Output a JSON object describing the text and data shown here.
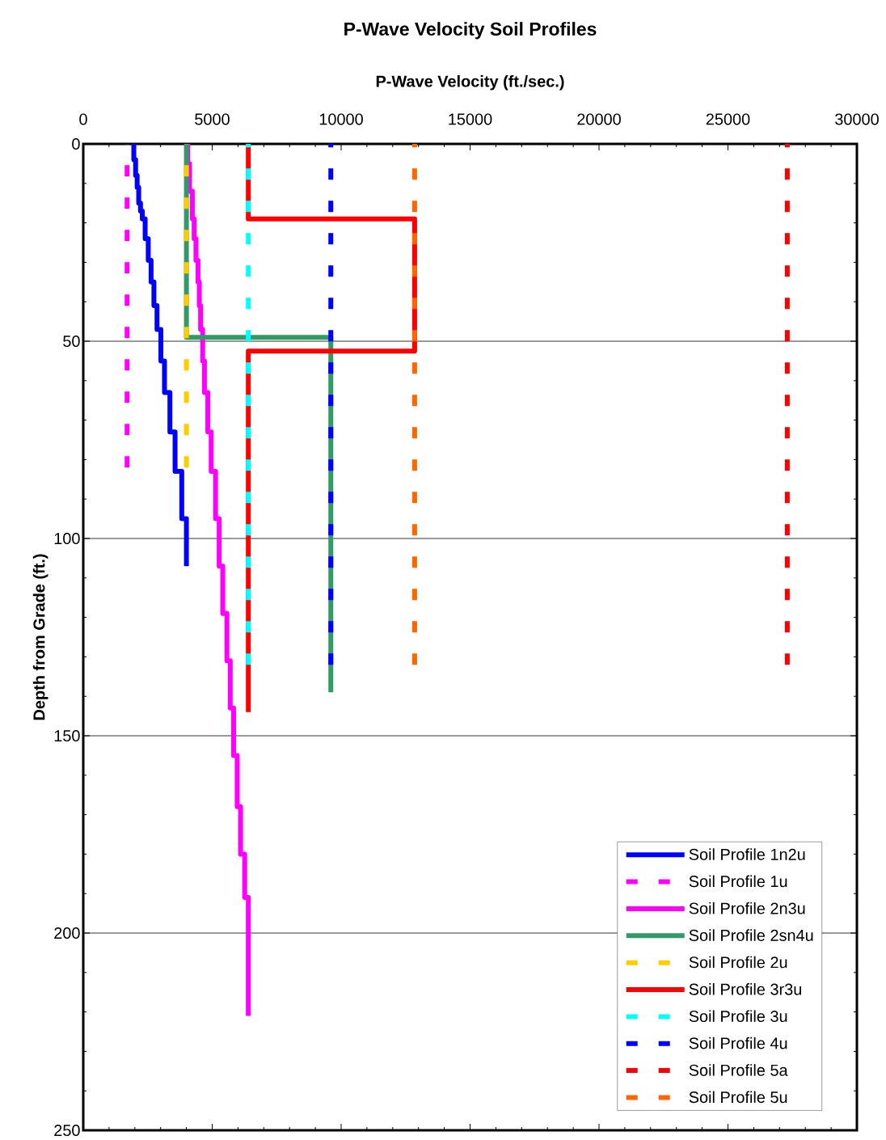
{
  "chart_data": {
    "type": "line",
    "title": "P-Wave Velocity Soil Profiles",
    "xlabel": "P-Wave Velocity (ft./sec.)",
    "ylabel": "Depth from Grade (ft.)",
    "xlim": [
      0,
      30000
    ],
    "xticks": [
      0,
      5000,
      10000,
      15000,
      20000,
      25000,
      30000
    ],
    "ylim": [
      250,
      0
    ],
    "yticks": [
      0,
      50,
      100,
      150,
      200,
      250
    ],
    "grid": "y",
    "legend": "bottom right",
    "series": [
      {
        "name": "Soil Profile 1n2u",
        "color": "#0000ff",
        "line_style": "solid",
        "x": [
          1960,
          1960,
          2030,
          2030,
          2090,
          2090,
          2150,
          2150,
          2220,
          2220,
          2290,
          2290,
          2400,
          2400,
          2520,
          2520,
          2630,
          2630,
          2740,
          2740,
          2860,
          2860,
          3010,
          3010,
          3150,
          3150,
          3360,
          3360,
          3560,
          3560,
          3820,
          3820,
          4000,
          4000
        ],
        "values": [
          0,
          4,
          4,
          8,
          8,
          11,
          11,
          15,
          15,
          17,
          17,
          19,
          19,
          24,
          24,
          29.5,
          29.5,
          35,
          35,
          41,
          41,
          47,
          47,
          55,
          55,
          63,
          63,
          73,
          73,
          83,
          83,
          95,
          95,
          107
        ]
      },
      {
        "name": "Soil Profile 1u",
        "color": "#ff00ff",
        "line_style": "dashed",
        "x": [
          1700,
          1700
        ],
        "values": [
          0,
          82
        ]
      },
      {
        "name": "Soil Profile 2n3u",
        "color": "#ff00ff",
        "line_style": "solid",
        "x": [
          4050,
          4050,
          4120,
          4120,
          4230,
          4230,
          4300,
          4300,
          4370,
          4370,
          4450,
          4450,
          4500,
          4500,
          4550,
          4550,
          4630,
          4630,
          4700,
          4700,
          4830,
          4830,
          4960,
          4960,
          5130,
          5130,
          5270,
          5270,
          5410,
          5410,
          5570,
          5570,
          5700,
          5700,
          5830,
          5830,
          5970,
          5970,
          6100,
          6100,
          6260,
          6260,
          6400,
          6400
        ],
        "values": [
          0,
          5,
          5,
          12,
          12,
          19,
          19,
          24,
          24,
          29.5,
          29.5,
          35,
          35,
          41,
          41,
          47,
          47,
          55,
          55,
          63,
          63,
          73,
          73,
          83,
          83,
          95,
          95,
          107,
          107,
          119,
          119,
          131,
          131,
          143,
          143,
          155,
          155,
          168,
          168,
          180,
          180,
          191,
          191,
          221
        ]
      },
      {
        "name": "Soil Profile 2sn4u",
        "color": "#339966",
        "line_style": "solid",
        "x": [
          4000,
          4000,
          9600,
          9600
        ],
        "values": [
          0,
          49,
          49,
          139
        ]
      },
      {
        "name": "Soil Profile 2u",
        "color": "#ffcc00",
        "line_style": "dashed",
        "x": [
          4000,
          4000
        ],
        "values": [
          0,
          82
        ]
      },
      {
        "name": "Soil Profile 3r3u",
        "color": "#ff0000",
        "line_style": "solid",
        "x": [
          6400,
          6400,
          12850,
          12850,
          6400,
          6400
        ],
        "values": [
          0,
          19,
          19,
          52.5,
          52.5,
          144
        ]
      },
      {
        "name": "Soil Profile 3u",
        "color": "#00ffff",
        "line_style": "dashed",
        "x": [
          6400,
          6400
        ],
        "values": [
          0,
          132
        ]
      },
      {
        "name": "Soil Profile 4u",
        "color": "#0000ff",
        "line_style": "dashed",
        "x": [
          9600,
          9600
        ],
        "values": [
          0,
          132
        ]
      },
      {
        "name": "Soil Profile 5a",
        "color": "#ff0000",
        "line_style": "dashed",
        "x": [
          27300,
          27300
        ],
        "values": [
          0,
          132
        ]
      },
      {
        "name": "Soil Profile 5u",
        "color": "#ff6600",
        "line_style": "dashed",
        "x": [
          12850,
          12850
        ],
        "values": [
          0,
          132
        ]
      }
    ]
  }
}
